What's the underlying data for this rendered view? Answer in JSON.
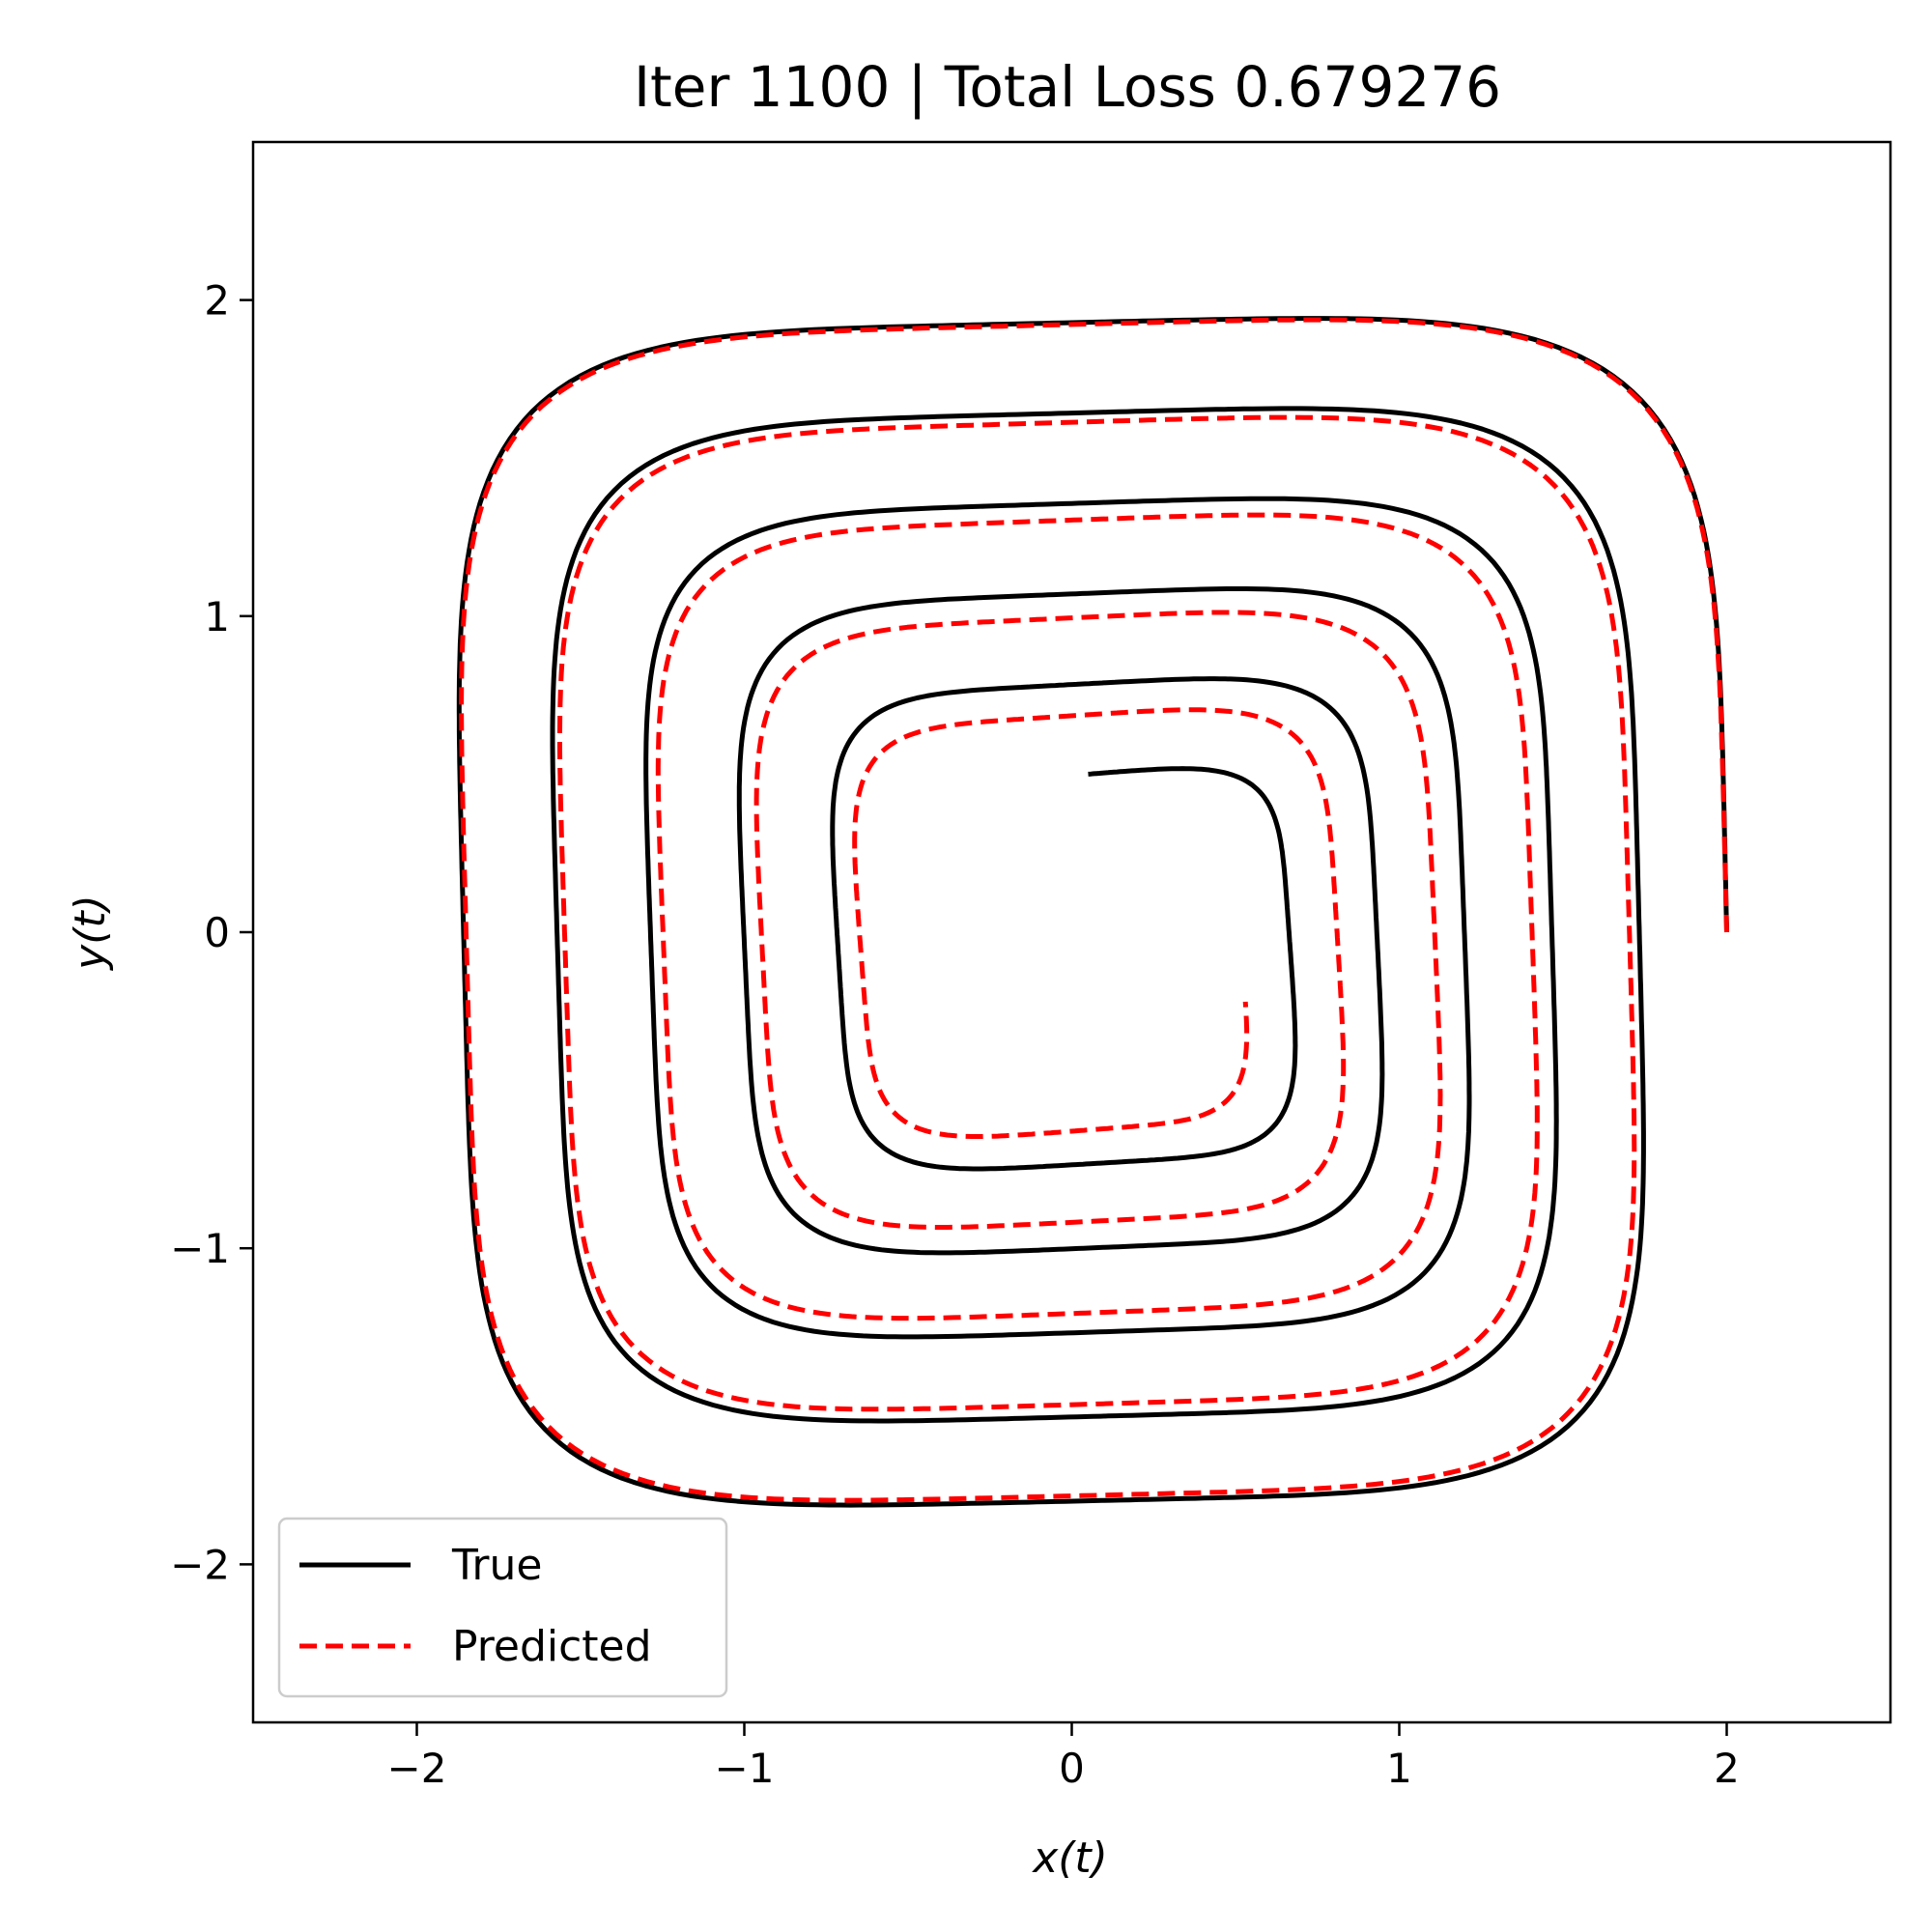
{
  "chart_data": {
    "type": "line",
    "title": "Iter 1100 | Total Loss 0.679276",
    "xlabel": "x(t)",
    "ylabel": "y(t)",
    "xlim": [
      -2.5,
      2.5
    ],
    "ylim": [
      -2.5,
      2.5
    ],
    "xticks": [
      -2,
      -1,
      0,
      1,
      2
    ],
    "yticks": [
      -2,
      -1,
      0,
      1,
      2
    ],
    "xtick_labels": [
      "−2",
      "−1",
      "0",
      "1",
      "2"
    ],
    "ytick_labels": [
      "−2",
      "−1",
      "0",
      "1",
      "2"
    ],
    "grid": false,
    "legend_position": "lower-left",
    "series": [
      {
        "name": "True",
        "color": "#000000",
        "style": "solid",
        "spiral": {
          "start": [
            2.0,
            0.0
          ],
          "end": [
            0.05,
            0.5
          ],
          "start_radius": 2.0,
          "end_radius": 0.55,
          "turns": 5.25,
          "direction": "counterclockwise",
          "squareness": 5
        }
      },
      {
        "name": "Predicted",
        "color": "#ff0000",
        "style": "dashed",
        "spiral": {
          "start": [
            2.0,
            0.0
          ],
          "end": [
            0.53,
            -0.22
          ],
          "start_radius": 2.0,
          "end_radius": 0.52,
          "turns": 4.95,
          "direction": "counterclockwise",
          "squareness": 5
        }
      }
    ]
  }
}
